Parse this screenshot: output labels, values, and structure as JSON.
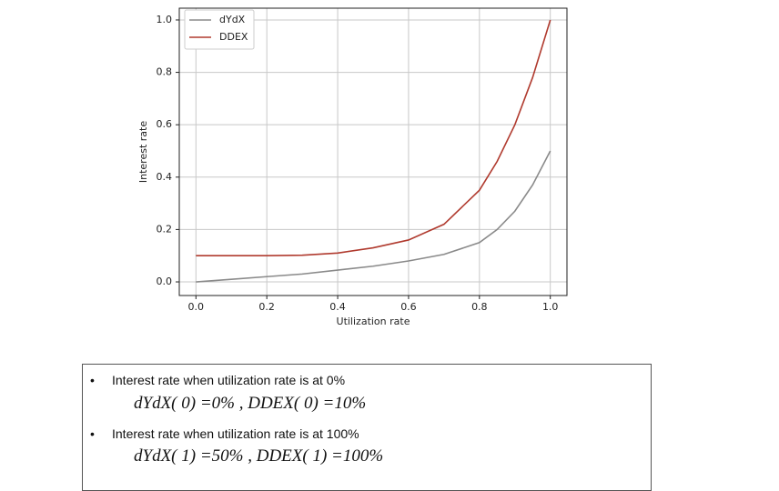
{
  "chart_data": {
    "type": "line",
    "x": [
      0,
      0.1,
      0.2,
      0.3,
      0.4,
      0.5,
      0.6,
      0.7,
      0.8,
      0.85,
      0.9,
      0.95,
      1.0
    ],
    "series": [
      {
        "name": "dYdX",
        "color": "#8a8a8a",
        "values": [
          0,
          0.01,
          0.02,
          0.03,
          0.045,
          0.06,
          0.08,
          0.105,
          0.15,
          0.2,
          0.27,
          0.37,
          0.5
        ]
      },
      {
        "name": "DDEX",
        "color": "#b03a2e",
        "values": [
          0.1,
          0.1,
          0.1,
          0.102,
          0.11,
          0.13,
          0.16,
          0.22,
          0.35,
          0.46,
          0.6,
          0.78,
          1.0
        ]
      }
    ],
    "xlabel": "Utilization rate",
    "ylabel": "Interest rate",
    "xlim": [
      -0.047,
      1.047
    ],
    "ylim": [
      -0.052,
      1.045
    ],
    "xticks": [
      {
        "value": 0,
        "label": "0.0"
      },
      0.2,
      0.4,
      0.6,
      0.8,
      {
        "value": 1,
        "label": "1.0"
      }
    ],
    "yticks": [
      {
        "value": 0,
        "label": "0.0"
      },
      0.2,
      0.4,
      0.6,
      0.8,
      {
        "value": 1,
        "label": "1.0"
      }
    ],
    "grid": true,
    "legend": "upper left"
  },
  "notes": [
    {
      "bullet": "Interest rate when utilization rate is at 0%",
      "formula": "dYdX( 0) =0% , DDEX( 0) =10%"
    },
    {
      "bullet": "Interest rate when utilization rate is at 100%",
      "formula": "dYdX( 1) =50% , DDEX( 1) =100%"
    }
  ]
}
